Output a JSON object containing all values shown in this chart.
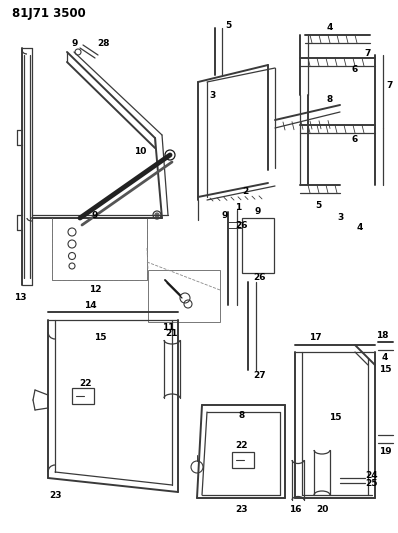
{
  "title": "81J71 3500",
  "bg_color": "#ffffff",
  "line_color": "#3a3a3a",
  "dark_color": "#1a1a1a",
  "label_fontsize": 6.5,
  "title_fontsize": 8.5,
  "figsize": [
    3.98,
    5.33
  ],
  "dpi": 100
}
